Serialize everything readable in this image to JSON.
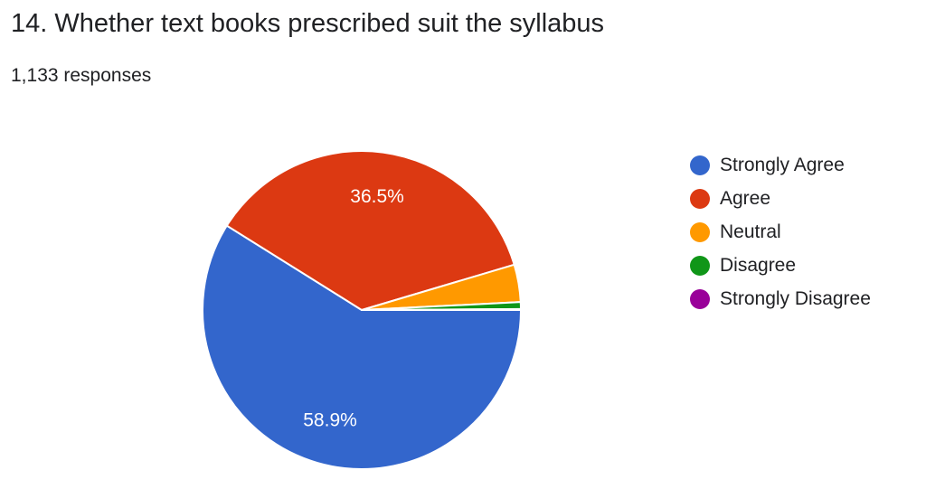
{
  "header": {
    "title": "14. Whether text books prescribed suit the syllabus",
    "responses": "1,133 responses"
  },
  "chart_data": {
    "type": "pie",
    "categories": [
      "Strongly Agree",
      "Agree",
      "Neutral",
      "Disagree",
      "Strongly Disagree"
    ],
    "values": [
      58.9,
      36.5,
      3.8,
      0.7,
      0.1
    ],
    "value_labels": [
      "58.9%",
      "36.5%",
      "",
      "",
      ""
    ],
    "colors": [
      "#3366cc",
      "#dc3912",
      "#ff9900",
      "#109618",
      "#990099"
    ],
    "legend_position": "right",
    "start": "3 o'clock, clockwise"
  }
}
